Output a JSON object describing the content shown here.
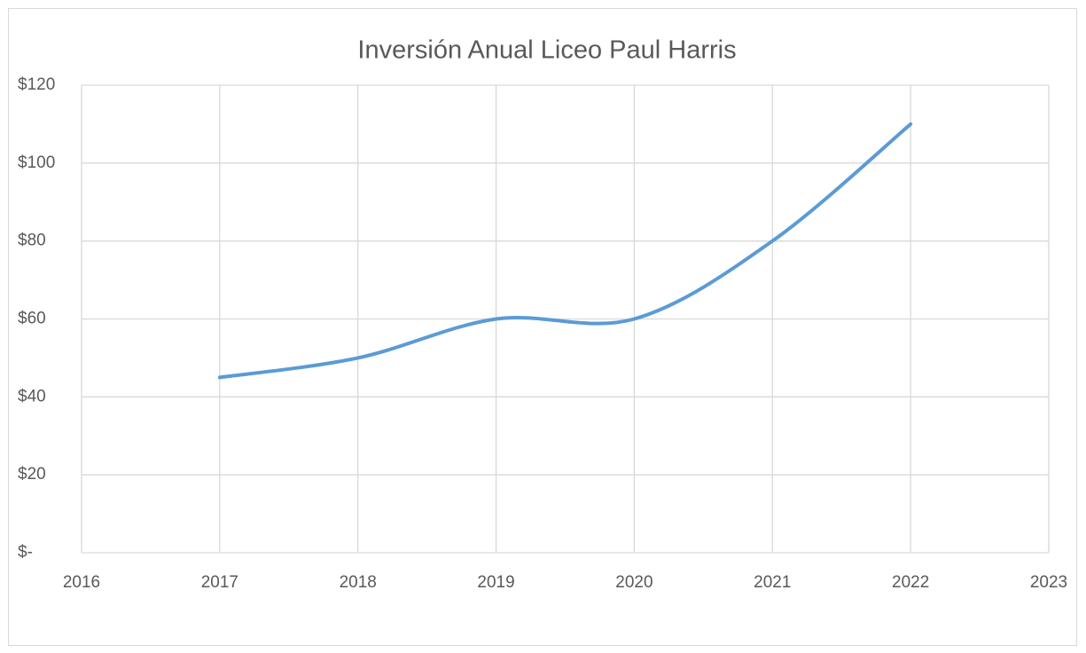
{
  "chart_data": {
    "type": "line",
    "title": "Inversión Anual Liceo Paul Harris",
    "x": [
      2017,
      2018,
      2019,
      2020,
      2021,
      2022
    ],
    "values": [
      45,
      50,
      60,
      60,
      80,
      110
    ],
    "color": "#5b9bd5",
    "smooth": true,
    "xlim": [
      2016,
      2023
    ],
    "xticks": [
      2016,
      2017,
      2018,
      2019,
      2020,
      2021,
      2022,
      2023
    ],
    "ylim": [
      0,
      120
    ],
    "yticks": [
      {
        "value": 0,
        "label": "$-"
      },
      {
        "value": 20,
        "label": "$20"
      },
      {
        "value": 40,
        "label": "$40"
      },
      {
        "value": 60,
        "label": "$60"
      },
      {
        "value": 80,
        "label": "$80"
      },
      {
        "value": 100,
        "label": "$100"
      },
      {
        "value": 120,
        "label": "$120"
      }
    ],
    "grid": true
  }
}
